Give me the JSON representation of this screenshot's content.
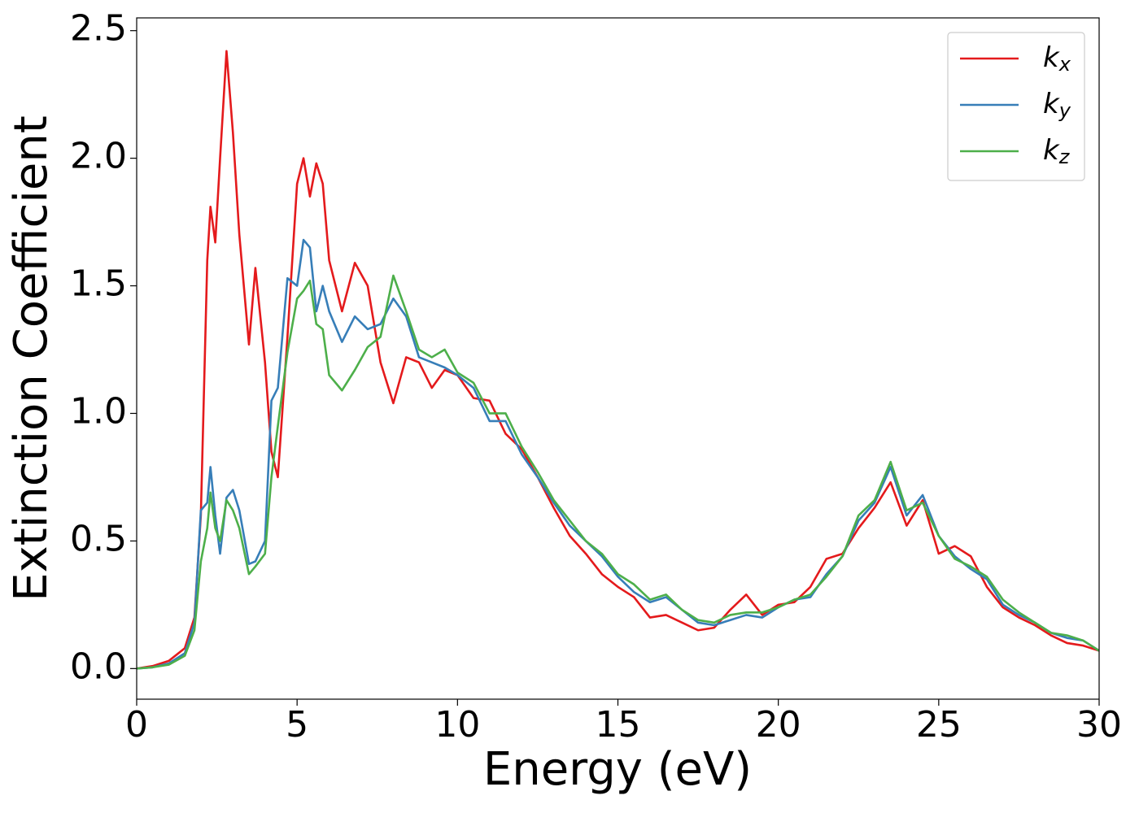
{
  "chart_data": {
    "type": "line",
    "xlabel": "Energy (eV)",
    "ylabel": "Extinction Coefficient",
    "x": [
      0,
      0.5,
      1,
      1.5,
      1.8,
      2.0,
      2.2,
      2.3,
      2.45,
      2.6,
      2.8,
      3.0,
      3.2,
      3.5,
      3.7,
      4.0,
      4.2,
      4.4,
      4.7,
      5.0,
      5.2,
      5.4,
      5.6,
      5.8,
      6.0,
      6.4,
      6.8,
      7.2,
      7.6,
      8.0,
      8.4,
      8.8,
      9.2,
      9.6,
      10,
      10.5,
      11,
      11.5,
      12,
      12.5,
      13,
      13.5,
      14,
      14.5,
      15,
      15.5,
      16,
      16.5,
      17,
      17.5,
      18,
      18.5,
      19,
      19.5,
      20,
      20.5,
      21,
      21.5,
      22,
      22.5,
      23,
      23.5,
      24,
      24.5,
      25,
      25.5,
      26,
      26.5,
      27,
      27.5,
      28,
      28.5,
      29,
      29.5,
      30
    ],
    "series": [
      {
        "name": "kx",
        "color": "#e41a1c",
        "values": [
          0,
          0.01,
          0.03,
          0.08,
          0.2,
          0.6,
          1.6,
          1.81,
          1.67,
          2.0,
          2.42,
          2.1,
          1.7,
          1.27,
          1.57,
          1.2,
          0.85,
          0.75,
          1.3,
          1.9,
          2.0,
          1.85,
          1.98,
          1.9,
          1.6,
          1.4,
          1.59,
          1.5,
          1.2,
          1.04,
          1.22,
          1.2,
          1.1,
          1.17,
          1.15,
          1.06,
          1.05,
          0.92,
          0.86,
          0.75,
          0.63,
          0.52,
          0.45,
          0.37,
          0.32,
          0.28,
          0.2,
          0.21,
          0.18,
          0.15,
          0.16,
          0.23,
          0.29,
          0.21,
          0.25,
          0.26,
          0.32,
          0.43,
          0.45,
          0.55,
          0.63,
          0.73,
          0.56,
          0.66,
          0.45,
          0.48,
          0.44,
          0.32,
          0.24,
          0.2,
          0.17,
          0.13,
          0.1,
          0.09,
          0.07
        ]
      },
      {
        "name": "ky",
        "color": "#377eb8",
        "values": [
          0,
          0.005,
          0.02,
          0.06,
          0.18,
          0.62,
          0.65,
          0.79,
          0.6,
          0.45,
          0.67,
          0.7,
          0.62,
          0.41,
          0.42,
          0.5,
          1.05,
          1.1,
          1.53,
          1.5,
          1.68,
          1.65,
          1.4,
          1.5,
          1.4,
          1.28,
          1.38,
          1.33,
          1.35,
          1.45,
          1.38,
          1.22,
          1.2,
          1.18,
          1.15,
          1.1,
          0.97,
          0.97,
          0.84,
          0.75,
          0.65,
          0.56,
          0.5,
          0.44,
          0.36,
          0.3,
          0.26,
          0.28,
          0.23,
          0.18,
          0.17,
          0.19,
          0.21,
          0.2,
          0.24,
          0.27,
          0.28,
          0.37,
          0.44,
          0.58,
          0.65,
          0.79,
          0.6,
          0.68,
          0.52,
          0.44,
          0.39,
          0.35,
          0.25,
          0.21,
          0.18,
          0.14,
          0.12,
          0.11,
          0.07
        ]
      },
      {
        "name": "kz",
        "color": "#4daf4a",
        "values": [
          0,
          0.005,
          0.015,
          0.05,
          0.15,
          0.42,
          0.55,
          0.69,
          0.55,
          0.5,
          0.66,
          0.62,
          0.55,
          0.37,
          0.4,
          0.45,
          0.75,
          0.95,
          1.24,
          1.45,
          1.48,
          1.52,
          1.35,
          1.33,
          1.15,
          1.09,
          1.17,
          1.26,
          1.3,
          1.54,
          1.4,
          1.25,
          1.22,
          1.25,
          1.16,
          1.12,
          1.0,
          1.0,
          0.87,
          0.77,
          0.66,
          0.58,
          0.5,
          0.45,
          0.37,
          0.33,
          0.27,
          0.29,
          0.23,
          0.19,
          0.18,
          0.21,
          0.22,
          0.22,
          0.24,
          0.27,
          0.29,
          0.36,
          0.44,
          0.6,
          0.66,
          0.81,
          0.62,
          0.65,
          0.52,
          0.43,
          0.4,
          0.36,
          0.27,
          0.22,
          0.18,
          0.14,
          0.13,
          0.11,
          0.07
        ]
      }
    ],
    "xlim": [
      0,
      30
    ],
    "xticks": [
      0,
      5,
      10,
      15,
      20,
      25,
      30
    ],
    "ylim": [
      -0.12,
      2.55
    ],
    "yticks": [
      {
        "value": 0,
        "label": "0.0"
      },
      0.5,
      {
        "value": 1,
        "label": "1.0"
      },
      1.5,
      {
        "value": 2,
        "label": "2.0"
      },
      2.5
    ],
    "legend": "upper right",
    "grid": false
  }
}
